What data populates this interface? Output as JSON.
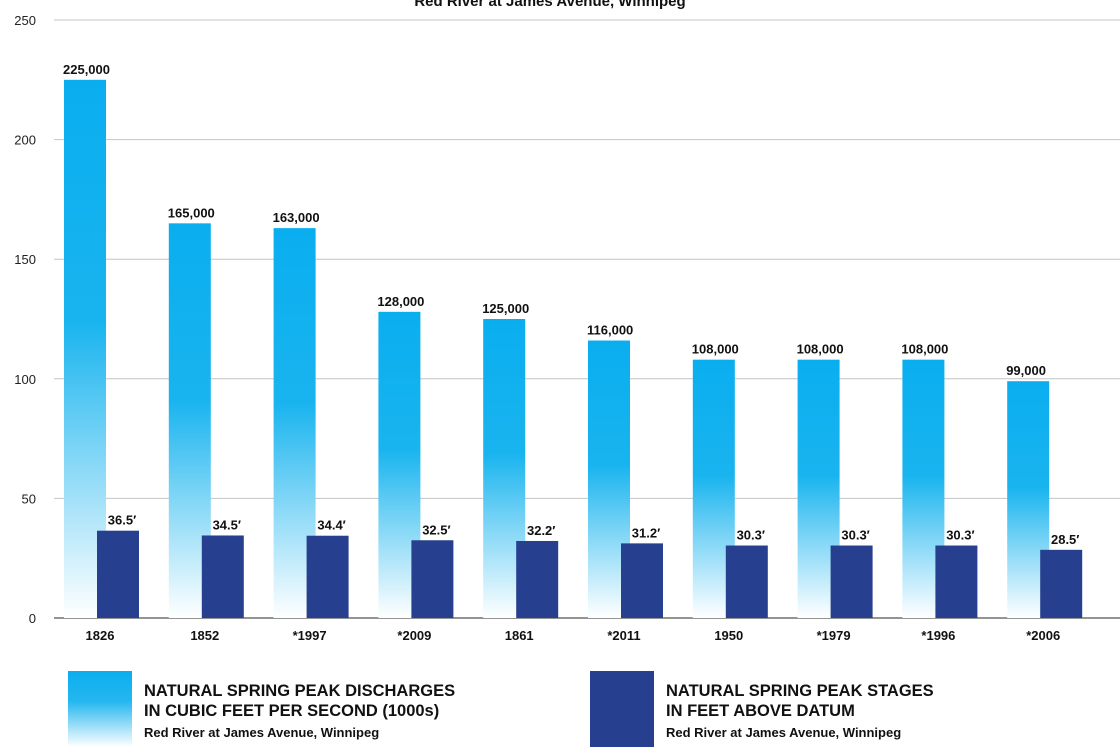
{
  "chart_data": {
    "type": "bar",
    "title": "Red River at James Avenue, Winnipeg",
    "categories": [
      "1826",
      "1852",
      "*1997",
      "*2009",
      "1861",
      "*2011",
      "1950",
      "*1979",
      "*1996",
      "*2006"
    ],
    "series": [
      {
        "name": "NATURAL SPRING PEAK DISCHARGES IN CUBIC FEET PER SECOND (1000s)",
        "values": [
          225,
          165,
          163,
          128,
          125,
          116,
          108,
          108,
          108,
          99
        ],
        "labels": [
          "225,000",
          "165,000",
          "163,000",
          "128,000",
          "125,000",
          "116,000",
          "108,000",
          "108,000",
          "108,000",
          "99,000"
        ],
        "color": "#0AAEEF"
      },
      {
        "name": "NATURAL SPRING PEAK STAGES IN FEET ABOVE DATUM",
        "values": [
          36.5,
          34.5,
          34.4,
          32.5,
          32.2,
          31.2,
          30.3,
          30.3,
          30.3,
          28.5
        ],
        "labels": [
          "36.5′",
          "34.5′",
          "34.4′",
          "32.5′",
          "32.2′",
          "31.2′",
          "30.3′",
          "30.3′",
          "30.3′",
          "28.5′"
        ],
        "color": "#273F8F"
      }
    ],
    "yticks": [
      0,
      50,
      100,
      150,
      200,
      250
    ],
    "ylim": [
      0,
      250
    ],
    "grid": true
  },
  "legend": {
    "discharge": {
      "title_line1": "NATURAL SPRING PEAK DISCHARGES",
      "title_line2": "IN CUBIC FEET PER SECOND (1000s)",
      "subtitle": "Red River at James Avenue, Winnipeg"
    },
    "stage": {
      "title_line1": "NATURAL SPRING PEAK STAGES",
      "title_line2": "IN FEET ABOVE DATUM",
      "subtitle": "Red River at James Avenue, Winnipeg"
    }
  }
}
